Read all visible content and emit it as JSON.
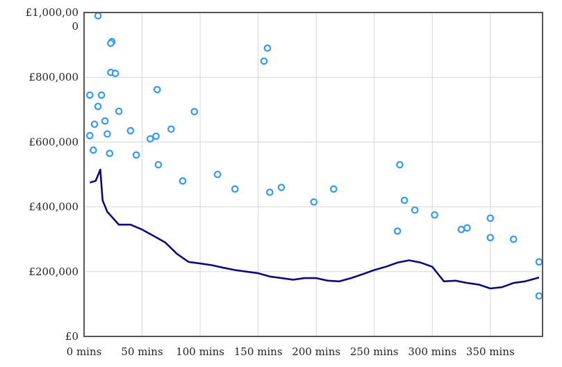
{
  "chart_data": {
    "type": "scatter",
    "title": "",
    "xlabel": "",
    "ylabel": "",
    "xlim": [
      0,
      395
    ],
    "ylim": [
      0,
      1000000
    ],
    "grid": true,
    "x_ticks": [
      0,
      50,
      100,
      150,
      200,
      250,
      300,
      350
    ],
    "x_tick_labels": [
      "0 mins",
      "50 mins",
      "100 mins",
      "150 mins",
      "200 mins",
      "250 mins",
      "300 mins",
      "350 mins"
    ],
    "y_ticks": [
      0,
      200000,
      400000,
      600000,
      800000,
      1000000
    ],
    "y_tick_labels": [
      "£0",
      "£200,000",
      "£400,000",
      "£600,000",
      "£800,000",
      "£1,000,00\n0"
    ],
    "colors": {
      "points": "#3399ff",
      "trend": "#0b0b7a",
      "grid": "#d6d6d6",
      "frame": "#555555"
    },
    "series": [
      {
        "name": "",
        "kind": "scatter",
        "points": [
          [
            12,
            990000
          ],
          [
            24,
            910000
          ],
          [
            23,
            905000
          ],
          [
            23,
            815000
          ],
          [
            27,
            812000
          ],
          [
            158,
            890000
          ],
          [
            155,
            850000
          ],
          [
            5,
            745000
          ],
          [
            15,
            745000
          ],
          [
            63,
            762000
          ],
          [
            95,
            694000
          ],
          [
            12,
            710000
          ],
          [
            9,
            655000
          ],
          [
            30,
            695000
          ],
          [
            18,
            665000
          ],
          [
            5,
            620000
          ],
          [
            20,
            625000
          ],
          [
            40,
            635000
          ],
          [
            57,
            610000
          ],
          [
            75,
            640000
          ],
          [
            62,
            618000
          ],
          [
            8,
            575000
          ],
          [
            22,
            565000
          ],
          [
            45,
            560000
          ],
          [
            64,
            530000
          ],
          [
            85,
            480000
          ],
          [
            130,
            455000
          ],
          [
            160,
            445000
          ],
          [
            170,
            460000
          ],
          [
            198,
            415000
          ],
          [
            215,
            455000
          ],
          [
            272,
            530000
          ],
          [
            276,
            420000
          ],
          [
            285,
            390000
          ],
          [
            302,
            375000
          ],
          [
            325,
            330000
          ],
          [
            350,
            365000
          ],
          [
            350,
            305000
          ],
          [
            370,
            300000
          ],
          [
            392,
            230000
          ],
          [
            392,
            125000
          ],
          [
            330,
            335000
          ],
          [
            115,
            500000
          ],
          [
            270,
            325000
          ]
        ]
      },
      {
        "name": "",
        "kind": "line",
        "points": [
          [
            5,
            475000
          ],
          [
            10,
            480000
          ],
          [
            14,
            515000
          ],
          [
            16,
            420000
          ],
          [
            20,
            385000
          ],
          [
            30,
            345000
          ],
          [
            40,
            345000
          ],
          [
            50,
            330000
          ],
          [
            60,
            310000
          ],
          [
            70,
            290000
          ],
          [
            80,
            255000
          ],
          [
            90,
            230000
          ],
          [
            100,
            225000
          ],
          [
            110,
            220000
          ],
          [
            120,
            212000
          ],
          [
            130,
            205000
          ],
          [
            140,
            200000
          ],
          [
            150,
            195000
          ],
          [
            160,
            185000
          ],
          [
            170,
            180000
          ],
          [
            180,
            175000
          ],
          [
            190,
            180000
          ],
          [
            200,
            180000
          ],
          [
            210,
            172000
          ],
          [
            220,
            170000
          ],
          [
            230,
            180000
          ],
          [
            240,
            192000
          ],
          [
            250,
            205000
          ],
          [
            260,
            215000
          ],
          [
            270,
            228000
          ],
          [
            280,
            235000
          ],
          [
            290,
            228000
          ],
          [
            300,
            215000
          ],
          [
            310,
            170000
          ],
          [
            320,
            172000
          ],
          [
            330,
            165000
          ],
          [
            340,
            160000
          ],
          [
            350,
            148000
          ],
          [
            360,
            152000
          ],
          [
            370,
            165000
          ],
          [
            380,
            170000
          ],
          [
            392,
            182000
          ]
        ]
      }
    ]
  }
}
